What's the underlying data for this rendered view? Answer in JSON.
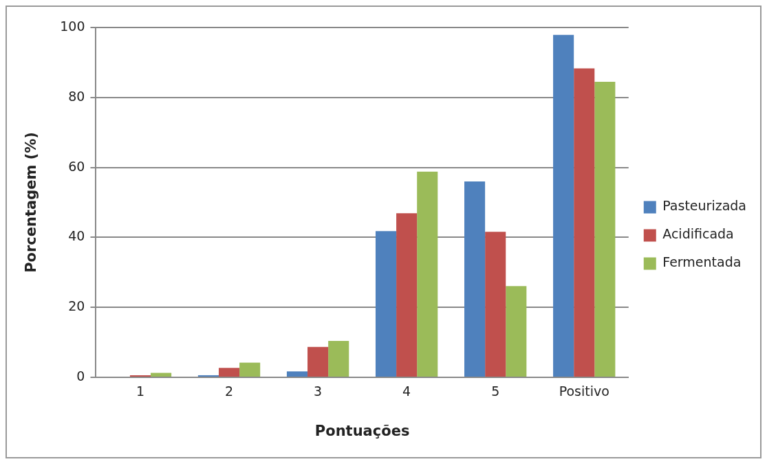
{
  "chart_data": {
    "type": "bar",
    "xlabel": "Pontuações",
    "ylabel": "Porcentagem (%)",
    "categories": [
      "1",
      "2",
      "3",
      "4",
      "5",
      "Positivo"
    ],
    "series": [
      {
        "name": "Pasteurizada",
        "color": "#4f81bd",
        "values": [
          0,
          0.6,
          1.7,
          41.8,
          56.0,
          97.9
        ]
      },
      {
        "name": "Acidificada",
        "color": "#c0504d",
        "values": [
          0.6,
          2.7,
          8.7,
          46.9,
          41.6,
          88.3
        ]
      },
      {
        "name": "Fermentada",
        "color": "#9bbb59",
        "values": [
          1.3,
          4.2,
          10.4,
          58.8,
          26.1,
          84.5
        ]
      }
    ],
    "ylim": [
      0,
      100
    ],
    "yticks": [
      0,
      20,
      40,
      60,
      80,
      100
    ],
    "grid": "y",
    "legend": "right"
  }
}
